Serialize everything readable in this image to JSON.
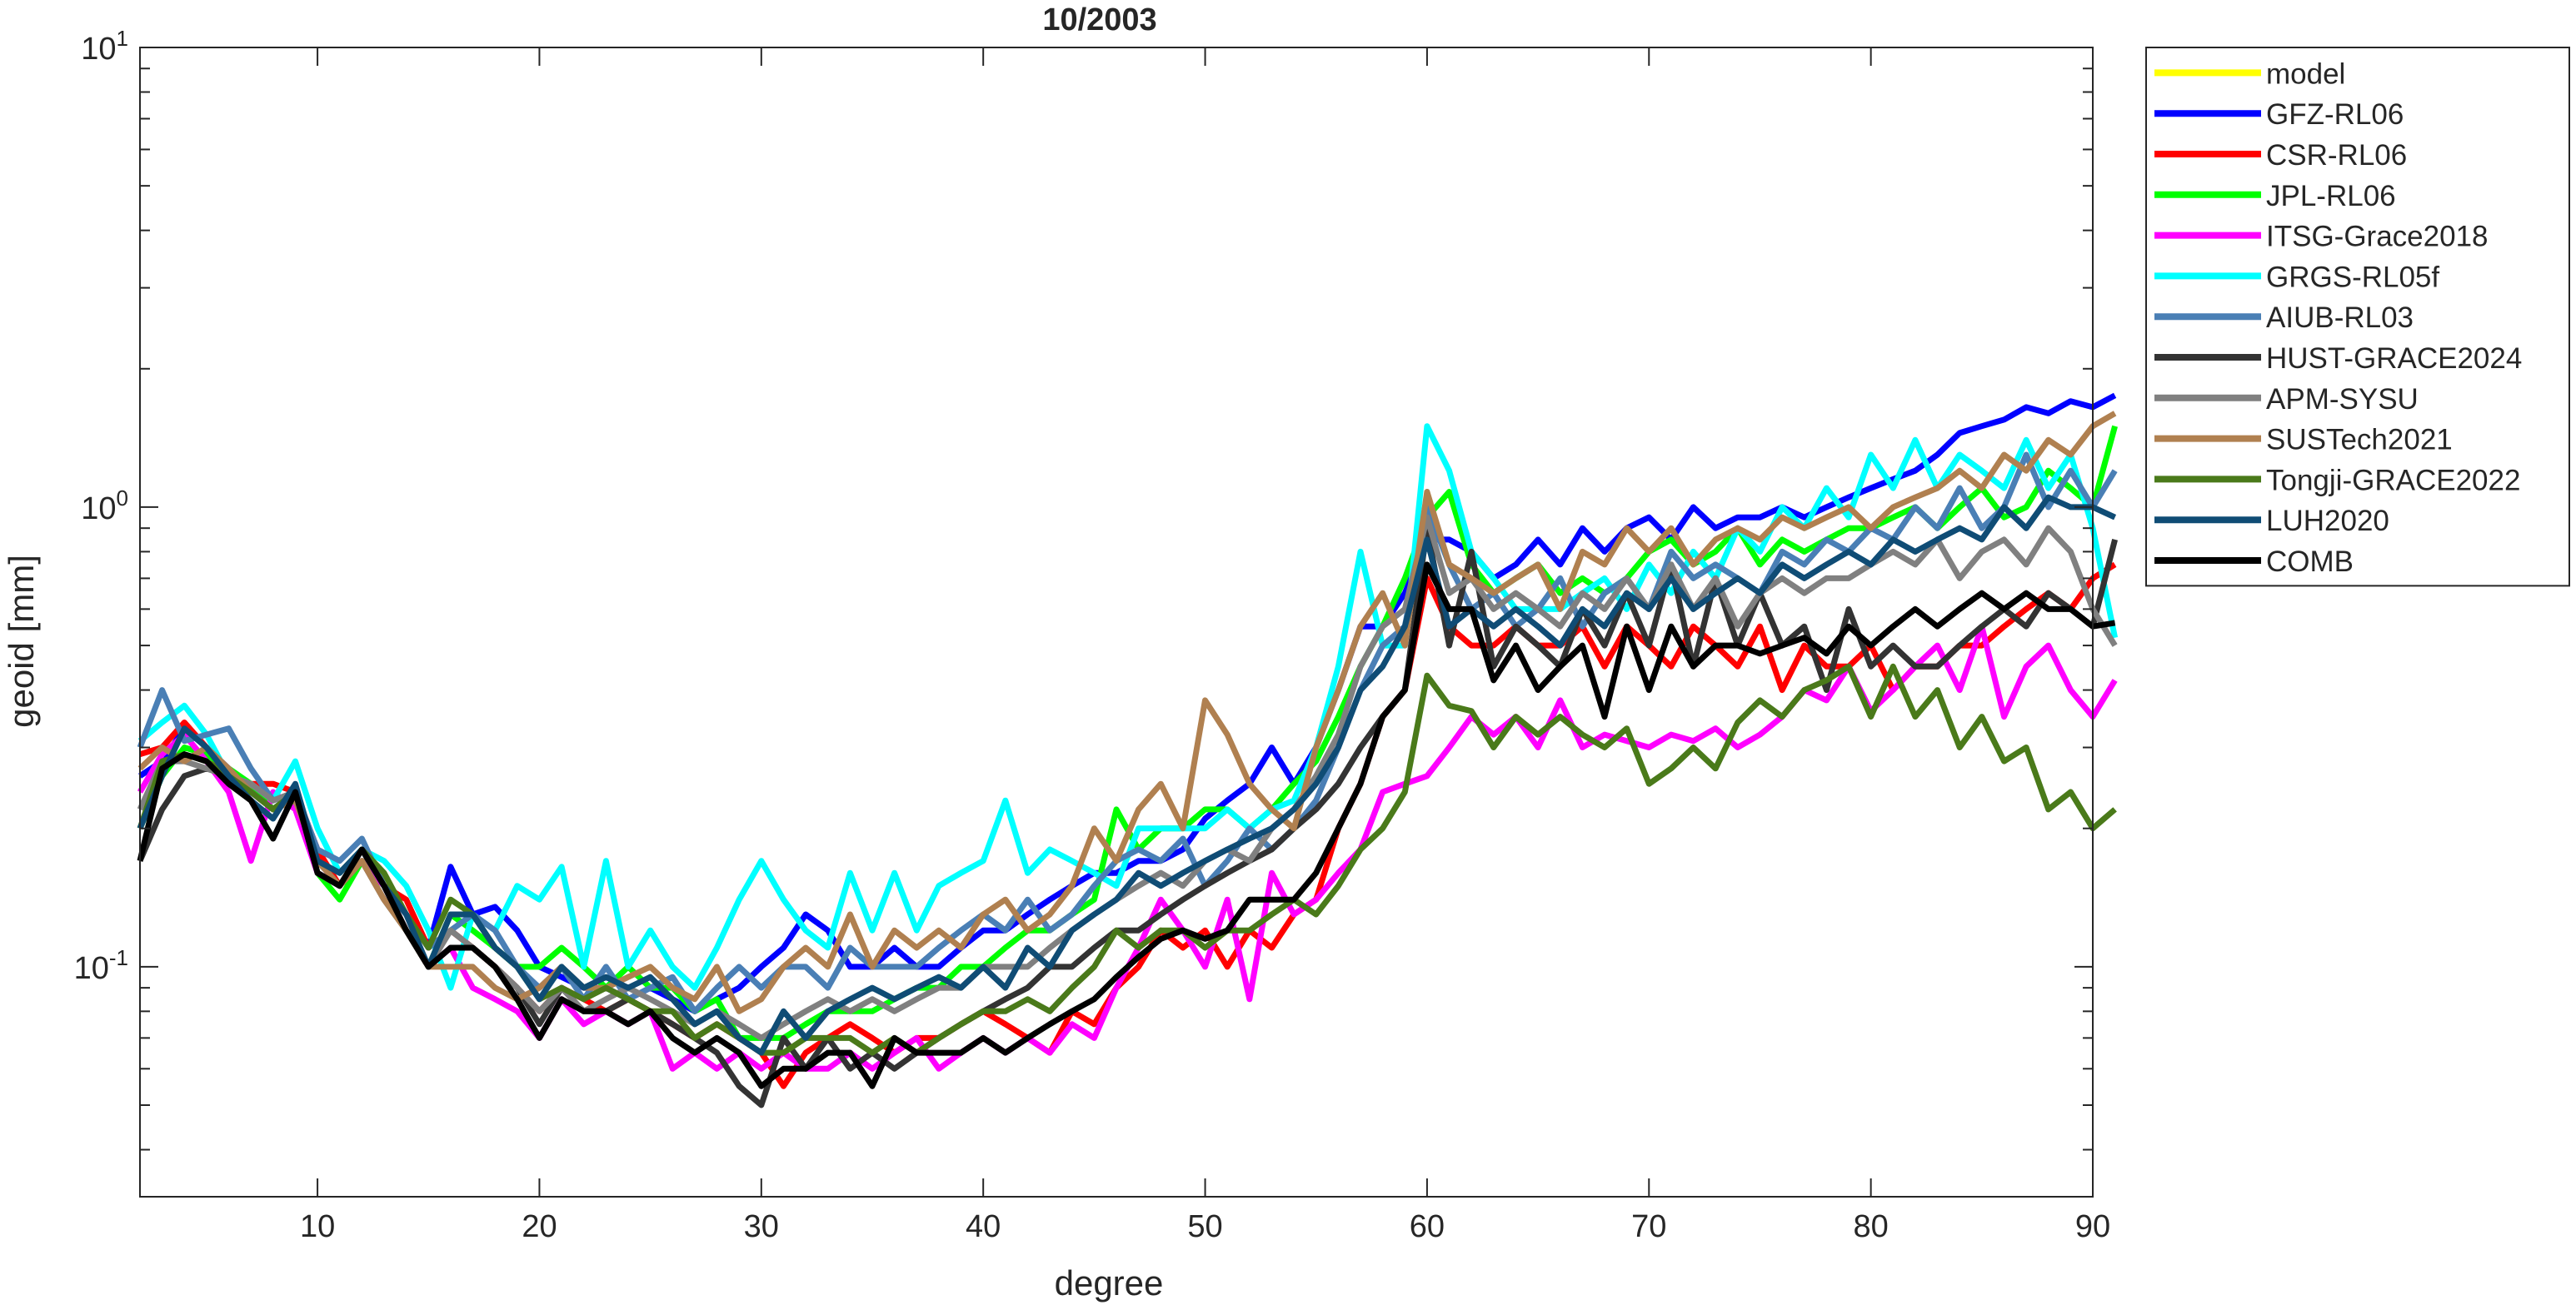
{
  "chart_data": {
    "type": "line",
    "title": "10/2003",
    "xlabel": "degree",
    "ylabel": "geoid [mm]",
    "xlim": [
      2,
      90
    ],
    "ylim": [
      0.0316,
      10
    ],
    "yscale": "log",
    "xticks": [
      10,
      20,
      30,
      40,
      50,
      60,
      70,
      80,
      90
    ],
    "yticks": [
      {
        "base": "10",
        "exp": "-1"
      },
      {
        "base": "10",
        "exp": "0"
      },
      {
        "base": "10",
        "exp": "1"
      }
    ],
    "grid": false,
    "legend_position": "outside-top-right",
    "x_start": 2,
    "series": [
      {
        "name": "model",
        "color": "#ffff00",
        "values": []
      },
      {
        "name": "GFZ-RL06",
        "color": "#0000ff",
        "values": [
          0.26,
          0.28,
          0.33,
          0.3,
          0.27,
          0.24,
          0.22,
          0.24,
          0.17,
          0.15,
          0.17,
          0.15,
          0.13,
          0.11,
          0.165,
          0.13,
          0.135,
          0.12,
          0.1,
          0.095,
          0.09,
          0.09,
          0.085,
          0.09,
          0.085,
          0.08,
          0.085,
          0.09,
          0.1,
          0.11,
          0.13,
          0.12,
          0.1,
          0.1,
          0.11,
          0.1,
          0.1,
          0.11,
          0.12,
          0.12,
          0.13,
          0.14,
          0.15,
          0.16,
          0.16,
          0.17,
          0.17,
          0.18,
          0.21,
          0.23,
          0.25,
          0.3,
          0.25,
          0.3,
          0.4,
          0.55,
          0.55,
          0.65,
          0.85,
          0.85,
          0.8,
          0.7,
          0.75,
          0.85,
          0.75,
          0.9,
          0.8,
          0.9,
          0.95,
          0.85,
          1.0,
          0.9,
          0.95,
          0.95,
          1.0,
          0.95,
          1.0,
          1.05,
          1.1,
          1.15,
          1.2,
          1.3,
          1.45,
          1.5,
          1.55,
          1.65,
          1.6,
          1.7,
          1.65,
          1.75
        ]
      },
      {
        "name": "CSR-RL06",
        "color": "#ff0000",
        "values": [
          0.29,
          0.3,
          0.34,
          0.3,
          0.25,
          0.25,
          0.25,
          0.24,
          0.18,
          0.15,
          0.17,
          0.15,
          0.14,
          0.11,
          0.12,
          0.11,
          0.1,
          0.09,
          0.08,
          0.09,
          0.085,
          0.08,
          0.085,
          0.08,
          0.075,
          0.07,
          0.075,
          0.07,
          0.065,
          0.055,
          0.065,
          0.07,
          0.075,
          0.07,
          0.065,
          0.07,
          0.07,
          0.075,
          0.08,
          0.075,
          0.07,
          0.065,
          0.08,
          0.075,
          0.09,
          0.1,
          0.12,
          0.11,
          0.12,
          0.1,
          0.12,
          0.11,
          0.13,
          0.14,
          0.2,
          0.25,
          0.35,
          0.4,
          0.7,
          0.55,
          0.5,
          0.5,
          0.55,
          0.5,
          0.5,
          0.55,
          0.45,
          0.55,
          0.5,
          0.45,
          0.55,
          0.5,
          0.45,
          0.55,
          0.4,
          0.5,
          0.45,
          0.45,
          0.5,
          0.4,
          0.45,
          0.45,
          0.5,
          0.5,
          0.55,
          0.6,
          0.65,
          0.6,
          0.7,
          0.75
        ]
      },
      {
        "name": "JPL-RL06",
        "color": "#00ff00",
        "values": [
          0.2,
          0.26,
          0.3,
          0.29,
          0.27,
          0.25,
          0.22,
          0.24,
          0.16,
          0.14,
          0.17,
          0.15,
          0.12,
          0.1,
          0.13,
          0.12,
          0.11,
          0.1,
          0.1,
          0.11,
          0.1,
          0.09,
          0.1,
          0.09,
          0.09,
          0.08,
          0.085,
          0.07,
          0.07,
          0.07,
          0.075,
          0.08,
          0.08,
          0.08,
          0.085,
          0.09,
          0.09,
          0.1,
          0.1,
          0.11,
          0.12,
          0.12,
          0.13,
          0.14,
          0.22,
          0.18,
          0.2,
          0.2,
          0.22,
          0.22,
          0.2,
          0.22,
          0.25,
          0.28,
          0.35,
          0.45,
          0.55,
          0.7,
          0.95,
          1.08,
          0.75,
          0.65,
          0.7,
          0.75,
          0.65,
          0.7,
          0.65,
          0.7,
          0.8,
          0.85,
          0.75,
          0.8,
          0.9,
          0.75,
          0.85,
          0.8,
          0.85,
          0.9,
          0.9,
          0.95,
          1.0,
          0.9,
          1.0,
          1.1,
          0.95,
          1.0,
          1.2,
          1.1,
          1.0,
          1.5
        ]
      },
      {
        "name": "ITSG-Grace2018",
        "color": "#ff00ff",
        "values": [
          0.24,
          0.29,
          0.32,
          0.28,
          0.24,
          0.17,
          0.24,
          0.22,
          0.16,
          0.15,
          0.17,
          0.15,
          0.12,
          0.1,
          0.11,
          0.09,
          0.085,
          0.08,
          0.07,
          0.085,
          0.075,
          0.08,
          0.075,
          0.08,
          0.06,
          0.065,
          0.06,
          0.065,
          0.06,
          0.065,
          0.06,
          0.06,
          0.065,
          0.06,
          0.065,
          0.07,
          0.06,
          0.065,
          0.07,
          0.065,
          0.07,
          0.065,
          0.075,
          0.07,
          0.09,
          0.11,
          0.14,
          0.12,
          0.1,
          0.14,
          0.085,
          0.16,
          0.13,
          0.14,
          0.16,
          0.18,
          0.24,
          0.25,
          0.26,
          0.3,
          0.35,
          0.32,
          0.35,
          0.3,
          0.38,
          0.3,
          0.32,
          0.31,
          0.3,
          0.32,
          0.31,
          0.33,
          0.3,
          0.32,
          0.35,
          0.4,
          0.38,
          0.45,
          0.36,
          0.4,
          0.45,
          0.5,
          0.4,
          0.55,
          0.35,
          0.45,
          0.5,
          0.4,
          0.35,
          0.42
        ]
      },
      {
        "name": "GRGS-RL05f",
        "color": "#00ffff",
        "values": [
          0.31,
          0.34,
          0.37,
          0.32,
          0.26,
          0.25,
          0.23,
          0.28,
          0.2,
          0.16,
          0.18,
          0.17,
          0.15,
          0.12,
          0.09,
          0.13,
          0.12,
          0.15,
          0.14,
          0.165,
          0.1,
          0.17,
          0.1,
          0.12,
          0.1,
          0.09,
          0.11,
          0.14,
          0.17,
          0.14,
          0.12,
          0.11,
          0.16,
          0.12,
          0.16,
          0.12,
          0.15,
          0.16,
          0.17,
          0.23,
          0.16,
          0.18,
          0.17,
          0.16,
          0.15,
          0.2,
          0.2,
          0.2,
          0.2,
          0.22,
          0.2,
          0.22,
          0.23,
          0.3,
          0.45,
          0.8,
          0.5,
          0.5,
          1.5,
          1.2,
          0.8,
          0.7,
          0.6,
          0.6,
          0.6,
          0.65,
          0.7,
          0.6,
          0.75,
          0.65,
          0.8,
          0.7,
          0.9,
          0.8,
          1.0,
          0.9,
          1.1,
          0.95,
          1.3,
          1.1,
          1.4,
          1.1,
          1.3,
          1.2,
          1.1,
          1.4,
          1.1,
          1.3,
          0.9,
          0.52
        ]
      },
      {
        "name": "AIUB-RL03",
        "color": "#4a7fb5",
        "values": [
          0.3,
          0.4,
          0.31,
          0.32,
          0.33,
          0.27,
          0.23,
          0.24,
          0.18,
          0.17,
          0.19,
          0.15,
          0.13,
          0.11,
          0.12,
          0.13,
          0.12,
          0.1,
          0.09,
          0.1,
          0.085,
          0.1,
          0.085,
          0.09,
          0.095,
          0.08,
          0.09,
          0.1,
          0.09,
          0.1,
          0.1,
          0.09,
          0.11,
          0.1,
          0.1,
          0.1,
          0.11,
          0.12,
          0.13,
          0.12,
          0.14,
          0.12,
          0.13,
          0.15,
          0.17,
          0.18,
          0.17,
          0.19,
          0.15,
          0.17,
          0.2,
          0.18,
          0.2,
          0.23,
          0.3,
          0.4,
          0.5,
          0.55,
          1.0,
          0.75,
          0.6,
          0.65,
          0.55,
          0.6,
          0.7,
          0.55,
          0.65,
          0.7,
          0.6,
          0.8,
          0.7,
          0.75,
          0.7,
          0.65,
          0.8,
          0.75,
          0.85,
          0.8,
          0.9,
          0.85,
          1.0,
          0.9,
          1.1,
          0.9,
          1.0,
          1.3,
          1.0,
          1.2,
          1.0,
          1.2
        ]
      },
      {
        "name": "HUST-GRACE2024",
        "color": "#333333",
        "values": [
          0.17,
          0.22,
          0.26,
          0.27,
          0.26,
          0.24,
          0.22,
          0.24,
          0.16,
          0.15,
          0.17,
          0.14,
          0.12,
          0.1,
          0.11,
          0.11,
          0.1,
          0.09,
          0.075,
          0.09,
          0.08,
          0.08,
          0.085,
          0.08,
          0.075,
          0.07,
          0.065,
          0.055,
          0.05,
          0.07,
          0.06,
          0.07,
          0.06,
          0.065,
          0.06,
          0.065,
          0.07,
          0.075,
          0.08,
          0.085,
          0.09,
          0.1,
          0.1,
          0.11,
          0.12,
          0.12,
          0.13,
          0.14,
          0.15,
          0.16,
          0.17,
          0.18,
          0.2,
          0.22,
          0.25,
          0.3,
          0.35,
          0.4,
          0.9,
          0.5,
          0.8,
          0.45,
          0.55,
          0.5,
          0.45,
          0.6,
          0.5,
          0.65,
          0.5,
          0.75,
          0.45,
          0.7,
          0.5,
          0.65,
          0.5,
          0.55,
          0.4,
          0.6,
          0.45,
          0.5,
          0.45,
          0.45,
          0.5,
          0.55,
          0.6,
          0.55,
          0.65,
          0.6,
          0.55,
          0.85
        ]
      },
      {
        "name": "APM-SYSU",
        "color": "#808080",
        "values": [
          0.22,
          0.28,
          0.28,
          0.27,
          0.26,
          0.25,
          0.23,
          0.24,
          0.17,
          0.15,
          0.17,
          0.14,
          0.12,
          0.1,
          0.12,
          0.11,
          0.1,
          0.09,
          0.08,
          0.09,
          0.08,
          0.085,
          0.09,
          0.085,
          0.08,
          0.075,
          0.08,
          0.075,
          0.07,
          0.075,
          0.08,
          0.085,
          0.08,
          0.085,
          0.08,
          0.085,
          0.09,
          0.09,
          0.1,
          0.1,
          0.1,
          0.11,
          0.12,
          0.13,
          0.14,
          0.15,
          0.16,
          0.15,
          0.17,
          0.18,
          0.17,
          0.2,
          0.22,
          0.26,
          0.32,
          0.45,
          0.55,
          0.6,
          0.95,
          0.65,
          0.7,
          0.6,
          0.65,
          0.6,
          0.55,
          0.65,
          0.6,
          0.7,
          0.6,
          0.75,
          0.6,
          0.7,
          0.55,
          0.65,
          0.7,
          0.65,
          0.7,
          0.7,
          0.75,
          0.8,
          0.75,
          0.85,
          0.7,
          0.8,
          0.85,
          0.75,
          0.9,
          0.8,
          0.6,
          0.5
        ]
      },
      {
        "name": "SUSTech2021",
        "color": "#b08050",
        "values": [
          0.27,
          0.3,
          0.28,
          0.3,
          0.27,
          0.24,
          0.22,
          0.23,
          0.17,
          0.15,
          0.17,
          0.14,
          0.12,
          0.1,
          0.1,
          0.1,
          0.09,
          0.085,
          0.09,
          0.1,
          0.09,
          0.09,
          0.095,
          0.1,
          0.09,
          0.085,
          0.1,
          0.08,
          0.085,
          0.1,
          0.11,
          0.1,
          0.13,
          0.1,
          0.12,
          0.11,
          0.12,
          0.11,
          0.13,
          0.14,
          0.12,
          0.13,
          0.15,
          0.2,
          0.17,
          0.22,
          0.25,
          0.2,
          0.38,
          0.32,
          0.25,
          0.22,
          0.2,
          0.3,
          0.4,
          0.55,
          0.65,
          0.5,
          1.08,
          0.75,
          0.7,
          0.65,
          0.7,
          0.75,
          0.6,
          0.8,
          0.75,
          0.9,
          0.8,
          0.9,
          0.75,
          0.85,
          0.9,
          0.85,
          0.95,
          0.9,
          0.95,
          1.0,
          0.9,
          1.0,
          1.05,
          1.1,
          1.2,
          1.1,
          1.3,
          1.2,
          1.4,
          1.3,
          1.5,
          1.6
        ]
      },
      {
        "name": "Tongji-GRACE2022",
        "color": "#4a7a1a",
        "values": [
          0.2,
          0.28,
          0.29,
          0.28,
          0.26,
          0.24,
          0.22,
          0.24,
          0.17,
          0.16,
          0.18,
          0.16,
          0.13,
          0.11,
          0.14,
          0.13,
          0.11,
          0.1,
          0.085,
          0.09,
          0.085,
          0.09,
          0.085,
          0.08,
          0.08,
          0.07,
          0.075,
          0.07,
          0.065,
          0.065,
          0.07,
          0.07,
          0.07,
          0.065,
          0.07,
          0.065,
          0.07,
          0.075,
          0.08,
          0.08,
          0.085,
          0.08,
          0.09,
          0.1,
          0.12,
          0.11,
          0.12,
          0.12,
          0.11,
          0.12,
          0.12,
          0.13,
          0.14,
          0.13,
          0.15,
          0.18,
          0.2,
          0.24,
          0.43,
          0.37,
          0.36,
          0.3,
          0.35,
          0.32,
          0.35,
          0.32,
          0.3,
          0.33,
          0.25,
          0.27,
          0.3,
          0.27,
          0.34,
          0.38,
          0.35,
          0.4,
          0.42,
          0.45,
          0.35,
          0.45,
          0.35,
          0.4,
          0.3,
          0.35,
          0.28,
          0.3,
          0.22,
          0.24,
          0.2,
          0.22
        ]
      },
      {
        "name": "LUH2020",
        "color": "#0f4c75",
        "values": [
          0.2,
          0.26,
          0.33,
          0.3,
          0.26,
          0.23,
          0.21,
          0.25,
          0.17,
          0.16,
          0.18,
          0.15,
          0.13,
          0.1,
          0.13,
          0.13,
          0.11,
          0.1,
          0.085,
          0.1,
          0.09,
          0.095,
          0.09,
          0.095,
          0.085,
          0.075,
          0.08,
          0.07,
          0.065,
          0.08,
          0.07,
          0.08,
          0.085,
          0.09,
          0.085,
          0.09,
          0.095,
          0.09,
          0.1,
          0.09,
          0.11,
          0.1,
          0.12,
          0.13,
          0.14,
          0.16,
          0.15,
          0.16,
          0.17,
          0.18,
          0.19,
          0.2,
          0.22,
          0.25,
          0.3,
          0.4,
          0.45,
          0.55,
          0.85,
          0.55,
          0.6,
          0.55,
          0.6,
          0.55,
          0.5,
          0.6,
          0.55,
          0.65,
          0.6,
          0.7,
          0.6,
          0.65,
          0.7,
          0.65,
          0.75,
          0.7,
          0.75,
          0.8,
          0.75,
          0.85,
          0.8,
          0.85,
          0.9,
          0.85,
          1.0,
          0.9,
          1.05,
          1.0,
          1.0,
          0.95
        ]
      },
      {
        "name": "COMB",
        "color": "#000000",
        "values": [
          0.17,
          0.27,
          0.29,
          0.28,
          0.25,
          0.23,
          0.19,
          0.24,
          0.16,
          0.15,
          0.18,
          0.15,
          0.12,
          0.1,
          0.11,
          0.11,
          0.1,
          0.085,
          0.07,
          0.085,
          0.08,
          0.08,
          0.075,
          0.08,
          0.07,
          0.065,
          0.07,
          0.065,
          0.055,
          0.06,
          0.06,
          0.065,
          0.065,
          0.055,
          0.07,
          0.065,
          0.065,
          0.065,
          0.07,
          0.065,
          0.07,
          0.075,
          0.08,
          0.085,
          0.095,
          0.105,
          0.115,
          0.12,
          0.115,
          0.12,
          0.14,
          0.14,
          0.14,
          0.16,
          0.2,
          0.25,
          0.35,
          0.4,
          0.75,
          0.6,
          0.6,
          0.42,
          0.5,
          0.4,
          0.45,
          0.5,
          0.35,
          0.55,
          0.4,
          0.55,
          0.45,
          0.5,
          0.5,
          0.48,
          0.5,
          0.52,
          0.48,
          0.55,
          0.5,
          0.55,
          0.6,
          0.55,
          0.6,
          0.65,
          0.6,
          0.65,
          0.6,
          0.6,
          0.55,
          0.56
        ]
      }
    ]
  }
}
